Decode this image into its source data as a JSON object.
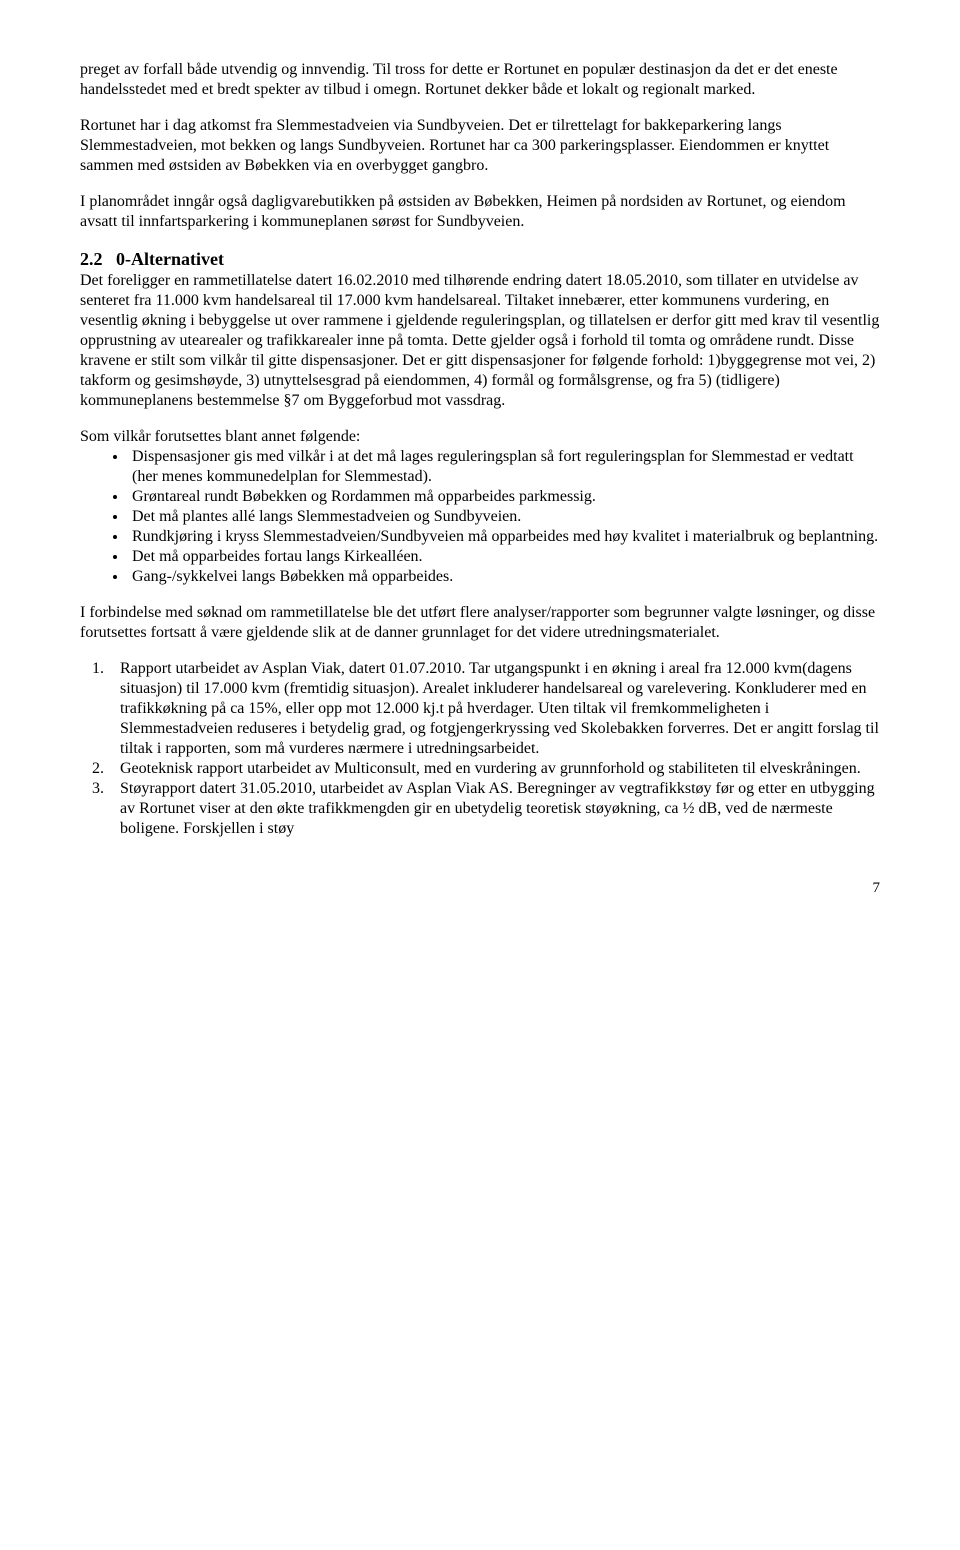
{
  "para1": "preget av forfall både utvendig og innvendig. Til tross for dette er Rortunet en populær destinasjon da det er det eneste handelsstedet med et bredt spekter av tilbud i omegn. Rortunet dekker både et lokalt og regionalt marked.",
  "para2": "Rortunet har i dag atkomst fra Slemmestadveien via Sundbyveien. Det er tilrettelagt for bakkeparkering langs Slemmestadveien, mot bekken og langs Sundbyveien. Rortunet har ca 300 parkeringsplasser. Eiendommen er knyttet sammen med østsiden av Bøbekken via en overbygget gangbro.",
  "para3": "I planområdet inngår også dagligvarebutikken på østsiden av Bøbekken, Heimen på nordsiden av Rortunet, og eiendom avsatt til innfartsparkering i kommuneplanen sørøst for Sundbyveien.",
  "section": {
    "number": "2.2",
    "title": "0-Alternativet",
    "intro": "Det foreligger en rammetillatelse datert 16.02.2010 med tilhørende endring datert 18.05.2010, som tillater en utvidelse av senteret fra 11.000 kvm handelsareal til 17.000 kvm handelsareal. Tiltaket innebærer, etter kommunens vurdering, en vesentlig økning i bebyggelse ut over rammene i gjeldende reguleringsplan, og tillatelsen er derfor gitt med krav til vesentlig opprustning av utearealer og trafikkarealer inne på tomta. Dette gjelder også i forhold til tomta og områdene rundt. Disse kravene er stilt som vilkår til gitte dispensasjoner. Det er gitt dispensasjoner for følgende forhold: 1)byggegrense mot vei, 2) takform og gesimshøyde, 3) utnyttelsesgrad på eiendommen, 4) formål og formålsgrense, og fra 5) (tidligere) kommuneplanens bestemmelse §7 om Byggeforbud mot vassdrag."
  },
  "conditions_intro": "Som vilkår forutsettes blant annet følgende:",
  "conditions": [
    "Dispensasjoner gis med vilkår i at det må lages reguleringsplan så fort reguleringsplan for Slemmestad er vedtatt (her menes kommunedelplan for Slemmestad).",
    "Grøntareal rundt Bøbekken og Rordammen må opparbeides parkmessig.",
    "Det må plantes allé langs Slemmestadveien og Sundbyveien.",
    "Rundkjøring i kryss Slemmestadveien/Sundbyveien må opparbeides med høy kvalitet i materialbruk og beplantning.",
    "Det må opparbeides fortau langs Kirkealléen.",
    "Gang-/sykkelvei langs Bøbekken må opparbeides."
  ],
  "reports_intro": "I forbindelse med søknad om rammetillatelse ble det utført flere analyser/rapporter som begrunner valgte løsninger, og disse forutsettes fortsatt å være gjeldende slik at de danner grunnlaget for det videre utredningsmaterialet.",
  "reports": [
    "Rapport utarbeidet av Asplan Viak, datert 01.07.2010. Tar utgangspunkt i en økning i areal fra 12.000 kvm(dagens situasjon) til 17.000 kvm (fremtidig situasjon). Arealet inkluderer handelsareal og varelevering. Konkluderer med en trafikkøkning på ca 15%, eller opp mot 12.000 kj.t på hverdager. Uten tiltak vil fremkommeligheten i Slemmestadveien reduseres i betydelig grad, og fotgjengerkryssing ved Skolebakken forverres. Det er angitt forslag til tiltak i rapporten, som må vurderes nærmere i utredningsarbeidet.",
    "Geoteknisk rapport utarbeidet av Multiconsult, med en vurdering av grunnforhold og stabiliteten til elveskråningen.",
    "Støyrapport datert 31.05.2010, utarbeidet av Asplan Viak AS. Beregninger av vegtrafikkstøy før og etter en utbygging av Rortunet viser at den økte trafikkmengden gir en ubetydelig teoretisk støyøkning, ca ½ dB, ved de nærmeste boligene. Forskjellen i støy"
  ],
  "page_number": "7"
}
